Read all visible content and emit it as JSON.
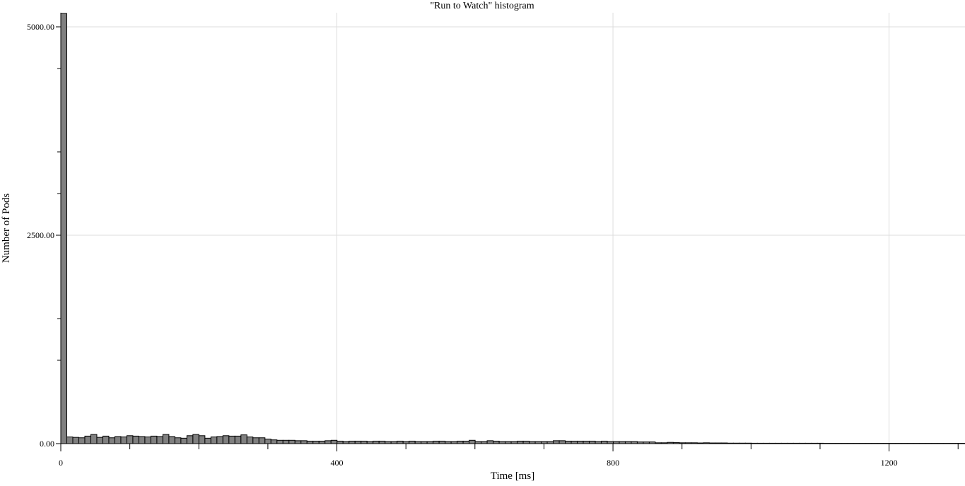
{
  "chart_data": {
    "type": "bar",
    "title": "\"Run to Watch\" histogram",
    "xlabel": "Time [ms]",
    "ylabel": "Number of Pods",
    "xlim": [
      0,
      1310
    ],
    "ylim": [
      0,
      5000
    ],
    "grid": true,
    "bin_width": 8.7,
    "y_ticks": [
      {
        "value": 0,
        "label": "0.00"
      },
      {
        "value": 2500,
        "label": "2500.00"
      },
      {
        "value": 5000,
        "label": "5000.00"
      }
    ],
    "y_minor_ticks": [
      1000,
      1500,
      3000,
      3500,
      4500
    ],
    "x_ticks": [
      {
        "value": 0,
        "label": "0"
      },
      {
        "value": 400,
        "label": "400"
      },
      {
        "value": 800,
        "label": "800"
      },
      {
        "value": 1200,
        "label": "1200"
      }
    ],
    "x_minor_ticks": [
      100,
      200,
      300,
      500,
      600,
      700,
      900,
      1000,
      1100,
      1300
    ],
    "values": [
      5160,
      80,
      75,
      70,
      90,
      110,
      75,
      90,
      70,
      85,
      80,
      95,
      90,
      85,
      80,
      90,
      85,
      110,
      85,
      70,
      65,
      95,
      110,
      95,
      65,
      80,
      85,
      95,
      90,
      90,
      105,
      80,
      70,
      70,
      55,
      45,
      40,
      40,
      40,
      35,
      35,
      30,
      30,
      30,
      35,
      40,
      30,
      25,
      30,
      30,
      30,
      25,
      30,
      30,
      25,
      25,
      30,
      25,
      30,
      25,
      25,
      25,
      30,
      30,
      25,
      25,
      30,
      30,
      40,
      25,
      25,
      35,
      30,
      25,
      25,
      25,
      30,
      30,
      25,
      25,
      25,
      25,
      35,
      35,
      30,
      30,
      30,
      30,
      30,
      25,
      30,
      25,
      25,
      25,
      25,
      25,
      20,
      20,
      20,
      10,
      10,
      15,
      12,
      10,
      10,
      10,
      8,
      10,
      8,
      8,
      8,
      6,
      6,
      6,
      6,
      5,
      5,
      5,
      5,
      5,
      5,
      5,
      5,
      5,
      5,
      5,
      5,
      4,
      4,
      4,
      4,
      4,
      4,
      4,
      4,
      4,
      4,
      4,
      4,
      4,
      4,
      4,
      4,
      4,
      4,
      4,
      4,
      4,
      4,
      4,
      4
    ],
    "colors": {
      "bar_fill": "#808080",
      "bar_stroke": "#000000",
      "grid": "#dddddd",
      "axis": "#000000"
    }
  }
}
